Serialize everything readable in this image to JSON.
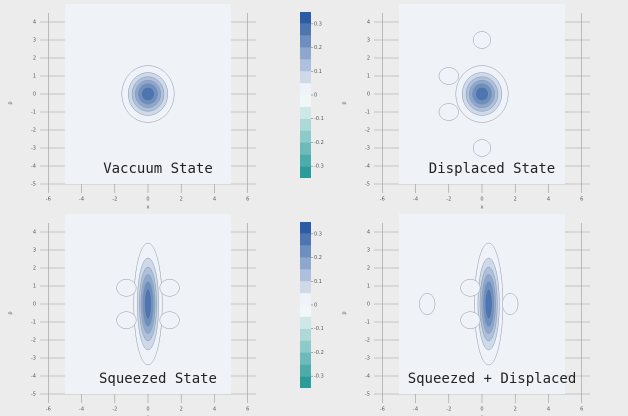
{
  "chart_data": [
    {
      "type": "contour",
      "title": "Vaccuum State",
      "xlabel": "x",
      "ylabel": "p",
      "xlim": [
        -6.5,
        6.5
      ],
      "ylim": [
        -5.5,
        4.5
      ],
      "xticks": [
        -6,
        -4,
        -2,
        0,
        2,
        4,
        6
      ],
      "yticks": [
        -5,
        -4,
        -3,
        -2,
        -1,
        0,
        1,
        2,
        3,
        4
      ],
      "extent": [
        -5,
        5
      ],
      "grid": true,
      "blobs": [
        {
          "x": 0,
          "y": 0,
          "sx": 0.7,
          "sy": 0.7,
          "amp": 0.32
        }
      ],
      "colorbar": {
        "lim": [
          -0.35,
          0.35
        ],
        "bands": 14,
        "ticks": [
          -0.3,
          -0.2,
          -0.1,
          0,
          0.1,
          0.2,
          0.3
        ]
      },
      "cmap": [
        "#1b9494",
        "#ffffff",
        "#1c4f9c"
      ]
    },
    {
      "type": "contour",
      "title": "Displaced State",
      "xlabel": "x",
      "ylabel": "p",
      "xlim": [
        -6.5,
        6.5
      ],
      "ylim": [
        -5.5,
        4.5
      ],
      "xticks": [
        -6,
        -4,
        -2,
        0,
        2,
        4,
        6
      ],
      "yticks": [
        -5,
        -4,
        -3,
        -2,
        -1,
        0,
        1,
        2,
        3,
        4
      ],
      "extent": [
        -5,
        5
      ],
      "grid": true,
      "blobs": [
        {
          "x": 0,
          "y": 0,
          "sx": 0.7,
          "sy": 0.7,
          "amp": 0.32
        },
        {
          "x": 0,
          "y": 3,
          "sx": 0.45,
          "sy": 0.4,
          "amp": 0.05
        },
        {
          "x": -2,
          "y": 1,
          "sx": 0.5,
          "sy": 0.4,
          "amp": 0.05
        },
        {
          "x": -2,
          "y": -1,
          "sx": 0.5,
          "sy": 0.4,
          "amp": 0.05
        },
        {
          "x": 0,
          "y": -3,
          "sx": 0.45,
          "sy": 0.4,
          "amp": 0.05
        }
      ],
      "cmap": [
        "#1b9494",
        "#ffffff",
        "#1c4f9c"
      ]
    },
    {
      "type": "contour",
      "title": "Squeezed State",
      "xlabel": "x",
      "ylabel": "p",
      "xlim": [
        -6.5,
        6.5
      ],
      "ylim": [
        -5.5,
        4.5
      ],
      "xticks": [
        -6,
        -4,
        -2,
        0,
        2,
        4,
        6
      ],
      "yticks": [
        -5,
        -4,
        -3,
        -2,
        -1,
        0,
        1,
        2,
        3,
        4
      ],
      "extent": [
        -5,
        5
      ],
      "grid": true,
      "blobs": [
        {
          "x": 0,
          "y": 0,
          "sx": 0.38,
          "sy": 1.5,
          "amp": 0.32
        },
        {
          "x": -1.3,
          "y": 0.9,
          "sx": 0.5,
          "sy": 0.4,
          "amp": 0.05
        },
        {
          "x": 1.3,
          "y": 0.9,
          "sx": 0.5,
          "sy": 0.4,
          "amp": 0.05
        },
        {
          "x": -1.3,
          "y": -0.9,
          "sx": 0.5,
          "sy": 0.4,
          "amp": 0.05
        },
        {
          "x": 1.3,
          "y": -0.9,
          "sx": 0.5,
          "sy": 0.4,
          "amp": 0.05
        }
      ],
      "colorbar": {
        "lim": [
          -0.35,
          0.35
        ],
        "bands": 14,
        "ticks": [
          -0.3,
          -0.2,
          -0.1,
          0,
          0.1,
          0.2,
          0.3
        ]
      },
      "cmap": [
        "#1b9494",
        "#ffffff",
        "#1c4f9c"
      ]
    },
    {
      "type": "contour",
      "title": "Squeezed + Displaced",
      "xlabel": "x",
      "ylabel": "p",
      "xlim": [
        -6.5,
        6.5
      ],
      "ylim": [
        -5.5,
        4.5
      ],
      "xticks": [
        -6,
        -4,
        -2,
        0,
        2,
        4,
        6
      ],
      "yticks": [
        -5,
        -4,
        -3,
        -2,
        -1,
        0,
        1,
        2,
        3,
        4
      ],
      "extent": [
        -5,
        5
      ],
      "grid": true,
      "blobs": [
        {
          "x": 0.4,
          "y": 0,
          "sx": 0.38,
          "sy": 1.5,
          "amp": 0.32
        },
        {
          "x": -0.7,
          "y": 0.9,
          "sx": 0.5,
          "sy": 0.4,
          "amp": 0.05
        },
        {
          "x": -0.7,
          "y": -0.9,
          "sx": 0.5,
          "sy": 0.4,
          "amp": 0.05
        },
        {
          "x": 1.7,
          "y": 0,
          "sx": 0.4,
          "sy": 0.5,
          "amp": 0.05
        },
        {
          "x": -3.3,
          "y": 0,
          "sx": 0.4,
          "sy": 0.5,
          "amp": 0.05
        }
      ],
      "cmap": [
        "#1b9494",
        "#ffffff",
        "#1c4f9c"
      ]
    }
  ]
}
